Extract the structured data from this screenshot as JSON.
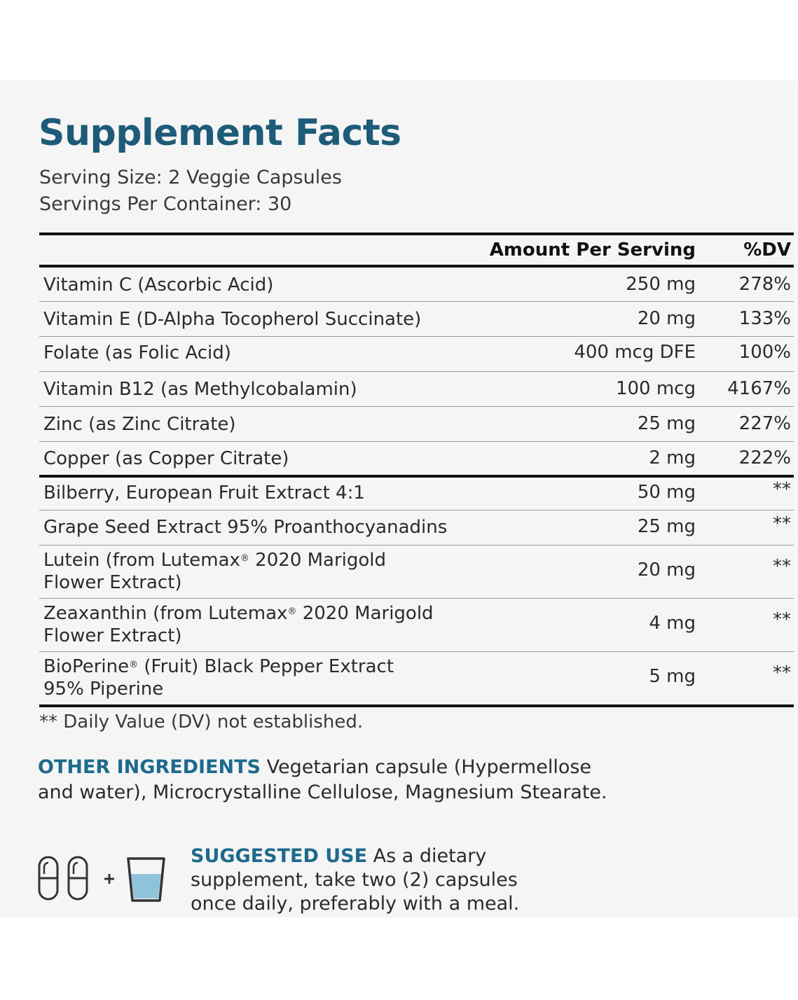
{
  "title": "Supplement Facts",
  "serving_size": "Serving Size: 2 Veggie Capsules",
  "servings_per_container": "Servings Per Container: 30",
  "header": {
    "amount": "Amount Per Serving",
    "dv": "%DV"
  },
  "rows": [
    {
      "name": "Vitamin C (Ascorbic Acid)",
      "amount": "250 mg",
      "dv": "278%"
    },
    {
      "name": "Vitamin E (D-Alpha Tocopherol Succinate)",
      "amount": "20 mg",
      "dv": "133%"
    },
    {
      "name": "Folate (as Folic Acid)",
      "amount": "400 mcg DFE",
      "dv": "100%"
    },
    {
      "name": "Vitamin B12 (as Methylcobalamin)",
      "amount": "100 mcg",
      "dv": "4167%"
    },
    {
      "name": "Zinc (as Zinc Citrate)",
      "amount": "25 mg",
      "dv": "227%"
    },
    {
      "name": "Copper (as Copper Citrate)",
      "amount": "2 mg",
      "dv": "222%"
    },
    {
      "name": "Bilberry, European Fruit Extract 4:1",
      "amount": "50 mg",
      "dv": "**"
    },
    {
      "name": "Grape Seed Extract 95% Proanthocyanadins",
      "amount": "25 mg",
      "dv": "**"
    },
    {
      "name_line1_a": "Lutein (from Lutemax",
      "name_line1_b": " 2020 Marigold",
      "name_line2": "Flower Extract)",
      "reg": "®",
      "amount": "20 mg",
      "dv": "**"
    },
    {
      "name_line1_a": "Zeaxanthin (from Lutemax",
      "name_line1_b": " 2020 Marigold",
      "name_line2": "Flower Extract)",
      "reg": "®",
      "amount": "4 mg",
      "dv": "**"
    },
    {
      "name_line1_a": "BioPerine",
      "name_line1_b": " (Fruit) Black Pepper Extract",
      "name_line2": "95% Piperine",
      "reg": "®",
      "amount": "5 mg",
      "dv": "**"
    }
  ],
  "footnote": "** Daily Value (DV) not established.",
  "other_ingredients": {
    "label": "OTHER INGREDIENTS",
    "text": " Vegetarian capsule (Hypermellose and water), Microcrystalline Cellulose, Magnesium Stearate."
  },
  "suggested_use": {
    "label": "SUGGESTED USE",
    "text": " As a dietary supplement, take two (2) capsules once daily, preferably with a meal."
  },
  "icons": {
    "capsule": "capsule-icon",
    "plus": "+",
    "glass": "water-glass-icon"
  },
  "colors": {
    "title": "#1d5b78",
    "accent": "#1d6a8c",
    "panel": "#f5f5f5",
    "water": "#8fc3d9"
  }
}
